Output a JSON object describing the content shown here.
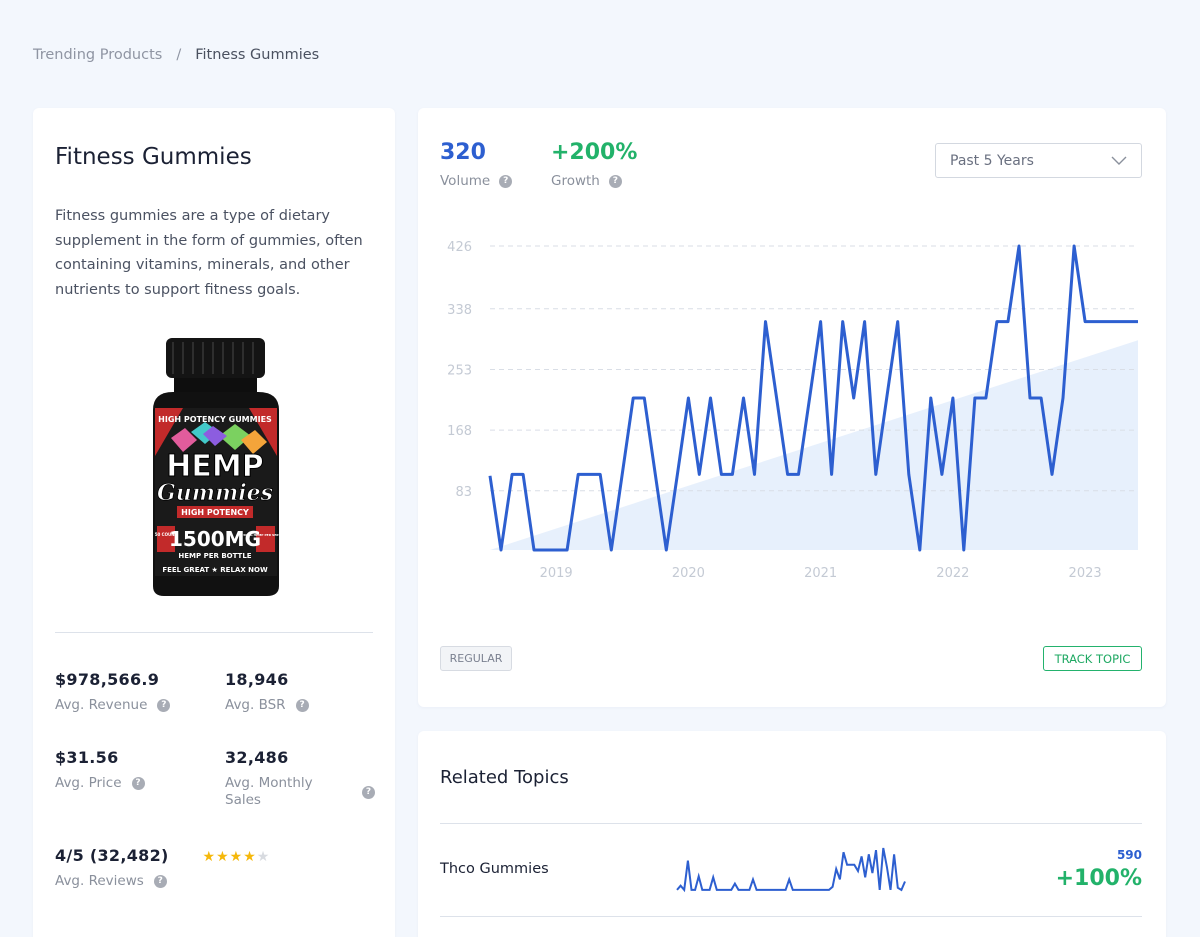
{
  "breadcrumb": {
    "parent": "Trending Products",
    "separator": "/",
    "current": "Fitness Gummies"
  },
  "product": {
    "title": "Fitness Gummies",
    "description": "Fitness gummies are a type of dietary supplement in the form of gummies, often containing vitamins, minerals, and other nutrients to support fitness goals.",
    "image": {
      "line1": "HIGH POTENCY GUMMIES",
      "line2": "HEMP",
      "line3": "Gummies",
      "line4": "HIGH POTENCY",
      "line5": "1500MG",
      "line6": "HEMP PER BOTTLE",
      "line7": "FEEL GREAT ★ RELAX NOW",
      "side_left": "50 COUNT",
      "side_right": "30MG HEMP PER SERVING"
    },
    "stats": {
      "revenue": {
        "value": "$978,566.9",
        "label": "Avg. Revenue"
      },
      "bsr": {
        "value": "18,946",
        "label": "Avg. BSR"
      },
      "price": {
        "value": "$31.56",
        "label": "Avg. Price"
      },
      "monthly_sales": {
        "value": "32,486",
        "label": "Avg. Monthly Sales"
      },
      "reviews": {
        "value": "4/5 (32,482)",
        "label": "Avg. Reviews",
        "rating": 4,
        "max": 5
      }
    },
    "help_icon": "question-circle-icon"
  },
  "trend": {
    "volume": {
      "value": "320",
      "label": "Volume"
    },
    "growth": {
      "value": "+200%",
      "label": "Growth"
    },
    "period": {
      "selected": "Past 5 Years"
    },
    "badge": "REGULAR",
    "track_button": "TRACK TOPIC",
    "colors": {
      "volume": "#2d5fd0",
      "growth": "#22b26a",
      "line": "#2d5fd0",
      "trend_fill": "#e3edfb"
    }
  },
  "chart_data": {
    "type": "line",
    "xlabel": "",
    "ylabel": "",
    "y_ticks": [
      83,
      168,
      253,
      338,
      426
    ],
    "x_ticks": [
      "2019",
      "2020",
      "2021",
      "2022",
      "2023"
    ],
    "x_tick_positions": [
      2019,
      2020,
      2021,
      2022,
      2023
    ],
    "xlim": [
      2018.5,
      2023.4
    ],
    "ylim": [
      0,
      426
    ],
    "grid": true,
    "series": [
      {
        "x": [
          2018.5,
          2018.583,
          2018.667,
          2018.75,
          2018.833,
          2018.917,
          2019.0,
          2019.083,
          2019.167,
          2019.25,
          2019.333,
          2019.417,
          2019.5,
          2019.583,
          2019.667,
          2019.75,
          2019.833,
          2019.917,
          2020.0,
          2020.083,
          2020.167,
          2020.25,
          2020.333,
          2020.417,
          2020.5,
          2020.583,
          2020.667,
          2020.75,
          2020.833,
          2020.917,
          2021.0,
          2021.083,
          2021.167,
          2021.25,
          2021.333,
          2021.417,
          2021.5,
          2021.583,
          2021.667,
          2021.75,
          2021.833,
          2021.917,
          2022.0,
          2022.083,
          2022.167,
          2022.25,
          2022.333,
          2022.417,
          2022.5,
          2022.583,
          2022.667,
          2022.75,
          2022.833,
          2022.917,
          2023.0,
          2023.083,
          2023.167,
          2023.25,
          2023.333,
          2023.4
        ],
        "y": [
          104,
          0,
          106,
          106,
          0,
          0,
          0,
          0,
          106,
          106,
          106,
          0,
          106,
          213,
          213,
          106,
          0,
          106,
          213,
          106,
          213,
          106,
          106,
          213,
          106,
          320,
          213,
          106,
          106,
          213,
          320,
          106,
          320,
          213,
          320,
          106,
          213,
          320,
          106,
          0,
          213,
          106,
          213,
          0,
          213,
          213,
          320,
          320,
          426,
          213,
          213,
          106,
          213,
          426,
          320,
          320,
          320,
          320,
          320,
          320
        ]
      }
    ],
    "trend_band": {
      "x": [
        2018.5,
        2023.4
      ],
      "y": [
        0,
        294
      ]
    }
  },
  "related": {
    "title": "Related Topics",
    "topics": [
      {
        "name": "Thco Gummies",
        "volume": "590",
        "growth": "+100%",
        "sparkline": [
          2,
          6,
          2,
          30,
          2,
          2,
          15,
          2,
          2,
          2,
          14,
          2,
          2,
          2,
          2,
          2,
          8,
          2,
          2,
          2,
          2,
          12,
          2,
          2,
          2,
          2,
          2,
          2,
          2,
          2,
          2,
          12,
          2,
          2,
          2,
          2,
          2,
          2,
          2,
          2,
          2,
          2,
          2,
          5,
          22,
          12,
          38,
          26,
          26,
          26,
          20,
          34,
          14,
          36,
          18,
          40,
          2,
          42,
          24,
          2,
          36,
          4,
          2,
          10
        ]
      }
    ]
  }
}
